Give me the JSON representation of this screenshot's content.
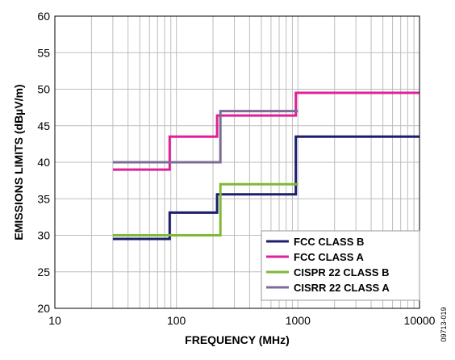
{
  "chart_data": {
    "type": "line",
    "step": true,
    "xlabel": "FREQUENCY (MHz)",
    "ylabel": "EMISSIONS LIMITS (dBµV/m)",
    "xscale": "log",
    "xlim": [
      10,
      10000
    ],
    "ylim": [
      20,
      60
    ],
    "xticks": [
      10,
      100,
      1000,
      10000
    ],
    "xtick_labels": [
      "10",
      "100",
      "1000",
      "10000"
    ],
    "yticks": [
      20,
      25,
      30,
      35,
      40,
      45,
      50,
      55,
      60
    ],
    "ytick_labels": [
      "20",
      "25",
      "30",
      "35",
      "40",
      "45",
      "50",
      "55",
      "60"
    ],
    "grid": true,
    "legend_position": "bottom-right",
    "figure_id": "09713-019",
    "series": [
      {
        "name": "FCC CLASS B",
        "color": "#1b1f6e",
        "x": [
          30,
          88,
          88,
          216,
          216,
          960,
          960,
          10000
        ],
        "y": [
          29.5,
          29.5,
          33.1,
          33.1,
          35.6,
          35.6,
          43.5,
          43.5
        ]
      },
      {
        "name": "FCC CLASS A",
        "color": "#e0209a",
        "x": [
          30,
          88,
          88,
          216,
          216,
          960,
          960,
          10000
        ],
        "y": [
          39,
          39,
          43.5,
          43.5,
          46.4,
          46.4,
          49.5,
          49.5
        ]
      },
      {
        "name": "CISPR 22 CLASS B",
        "color": "#80b838",
        "x": [
          30,
          230,
          230,
          1000
        ],
        "y": [
          30,
          30,
          37,
          37
        ]
      },
      {
        "name": "CISRR 22 CLASS A",
        "color": "#7c6c94",
        "x": [
          30,
          230,
          230,
          1000
        ],
        "y": [
          40,
          40,
          47,
          47
        ]
      }
    ]
  }
}
